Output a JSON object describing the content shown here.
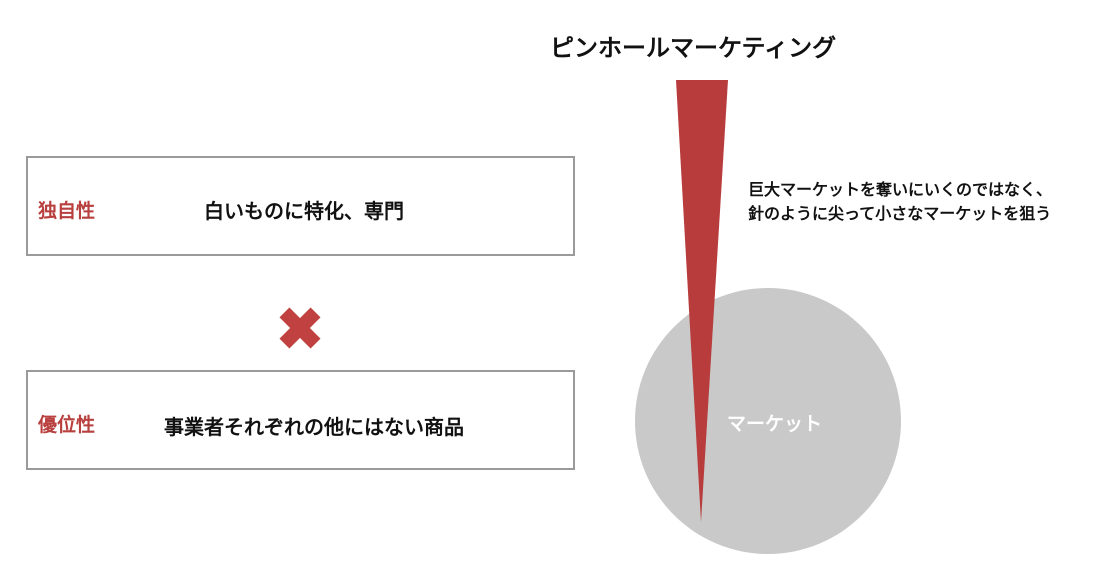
{
  "title": "ピンホールマーケティング",
  "rows": [
    {
      "label": "独自性",
      "text": "白いものに特化、専門"
    },
    {
      "label": "優位性",
      "text": "事業者それぞれの他にはない商品"
    }
  ],
  "operator_icon": "multiply-cross-icon",
  "description": [
    "巨大マーケットを奪いにいくのではなく、",
    "針のように尖って小さなマーケットを狙う"
  ],
  "market_label": "マーケット",
  "colors": {
    "accent": "#b83c3c",
    "market": "#c9c9c9",
    "border": "#9a9a9a"
  }
}
